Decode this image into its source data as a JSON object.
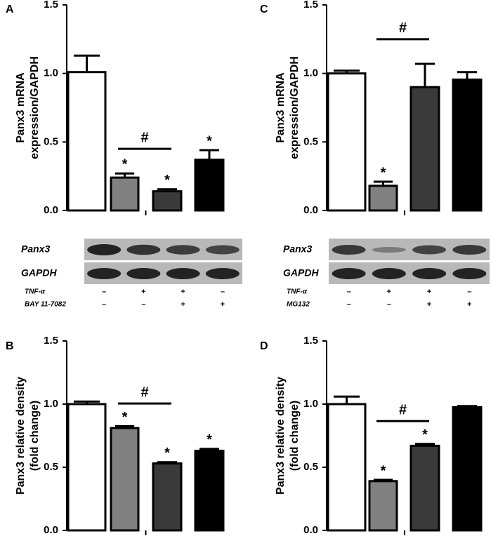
{
  "chart_data": [
    {
      "type": "bar",
      "panel": "A",
      "y_label": [
        "Panx3 mRNA",
        "expression/GAPDH"
      ],
      "categories": [
        null,
        null,
        null,
        null
      ],
      "values": [
        1.01,
        0.24,
        0.14,
        0.37
      ],
      "errors": [
        0.12,
        0.03,
        0.015,
        0.07
      ],
      "colors": [
        "#ffffff",
        "#808080",
        "#3a3a3a",
        "#000000"
      ],
      "edge_color": "#000000",
      "ylim": [
        0,
        1.5
      ],
      "yticks": [
        {
          "value": 0,
          "label": "0.0"
        },
        {
          "value": 0.5,
          "label": "0.5"
        },
        {
          "value": 1,
          "label": "1.0"
        },
        {
          "value": 1.5,
          "label": "1.5"
        }
      ],
      "annotations": [
        {
          "text": "*",
          "at": 1
        },
        {
          "text": "*",
          "at": 2
        },
        {
          "text": "*",
          "at": 3
        },
        {
          "text": "#",
          "from": 1,
          "to": 2
        }
      ]
    },
    {
      "type": "bar",
      "panel": "C",
      "y_label": [
        "Panx3 mRNA",
        "expression/GAPDH"
      ],
      "categories": [
        null,
        null,
        null,
        null
      ],
      "values": [
        1.0,
        0.18,
        0.9,
        0.955
      ],
      "errors": [
        0.02,
        0.03,
        0.17,
        0.055
      ],
      "colors": [
        "#ffffff",
        "#808080",
        "#3a3a3a",
        "#000000"
      ],
      "edge_color": "#000000",
      "ylim": [
        0,
        1.5
      ],
      "yticks": [
        {
          "value": 0,
          "label": "0.0"
        },
        {
          "value": 0.5,
          "label": "0.5"
        },
        {
          "value": 1,
          "label": "1.0"
        },
        {
          "value": 1.5,
          "label": "1.5"
        }
      ],
      "annotations": [
        {
          "text": "*",
          "at": 1
        },
        {
          "text": "#",
          "from": 1,
          "to": 2
        }
      ]
    },
    {
      "type": "bar",
      "panel": "B",
      "y_label": [
        "Panx3 relative density",
        "(fold change)"
      ],
      "categories": [
        null,
        null,
        null,
        null
      ],
      "values": [
        1.0,
        0.81,
        0.53,
        0.63
      ],
      "errors": [
        0.02,
        0.015,
        0.01,
        0.015
      ],
      "colors": [
        "#ffffff",
        "#808080",
        "#3a3a3a",
        "#000000"
      ],
      "edge_color": "#000000",
      "ylim": [
        0,
        1.5
      ],
      "yticks": [
        {
          "value": 0,
          "label": "0.0"
        },
        {
          "value": 0.5,
          "label": "0.5"
        },
        {
          "value": 1,
          "label": "1.0"
        },
        {
          "value": 1.5,
          "label": "1.5"
        }
      ],
      "annotations": [
        {
          "text": "*",
          "at": 1
        },
        {
          "text": "*",
          "at": 2
        },
        {
          "text": "*",
          "at": 3
        },
        {
          "text": "#",
          "from": 1,
          "to": 2
        }
      ]
    },
    {
      "type": "bar",
      "panel": "D",
      "y_label": [
        "Panx3 relative density",
        "(fold change)"
      ],
      "categories": [
        null,
        null,
        null,
        null
      ],
      "values": [
        1.0,
        0.39,
        0.67,
        0.975
      ],
      "errors": [
        0.06,
        0.01,
        0.015,
        0.01
      ],
      "colors": [
        "#ffffff",
        "#808080",
        "#3a3a3a",
        "#000000"
      ],
      "edge_color": "#000000",
      "ylim": [
        0,
        1.5
      ],
      "yticks": [
        {
          "value": 0,
          "label": "0.0"
        },
        {
          "value": 0.5,
          "label": "0.5"
        },
        {
          "value": 1,
          "label": "1.0"
        },
        {
          "value": 1.5,
          "label": "1.5"
        }
      ],
      "annotations": [
        {
          "text": "*",
          "at": 1
        },
        {
          "text": "*",
          "at": 2
        },
        {
          "text": "#",
          "from": 1,
          "to": 2
        }
      ]
    }
  ],
  "blots": [
    {
      "rows": [
        "Panx3",
        "GAPDH"
      ],
      "treatments": [
        {
          "label": "TNF-α",
          "signs": [
            "–",
            "+",
            "+",
            "–"
          ]
        },
        {
          "label": "BAY 11-7082",
          "signs": [
            "–",
            "–",
            "+",
            "+"
          ]
        }
      ]
    },
    {
      "rows": [
        "Panx3",
        "GAPDH"
      ],
      "treatments": [
        {
          "label": "TNF-α",
          "signs": [
            "–",
            "+",
            "+",
            "–"
          ]
        },
        {
          "label": "MG132",
          "signs": [
            "–",
            "–",
            "+",
            "+"
          ]
        }
      ]
    }
  ]
}
